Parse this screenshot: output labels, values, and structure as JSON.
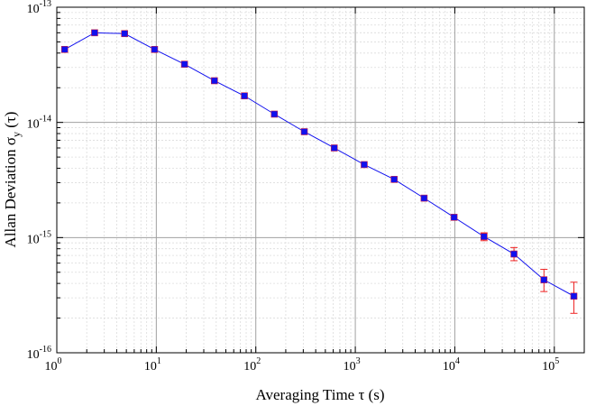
{
  "chart_data": {
    "type": "scatter",
    "title": "",
    "xlabel": "Averaging Time  τ (s)",
    "ylabel_main": "Allan Deviation  σ",
    "ylabel_sub": "y",
    "ylabel_tail": " (τ)",
    "xscale": "log",
    "yscale": "log",
    "xlim": [
      1,
      200000
    ],
    "ylim": [
      1e-16,
      1e-13
    ],
    "x_ticks": [
      {
        "base": "10",
        "exp": "0"
      },
      {
        "base": "10",
        "exp": "1"
      },
      {
        "base": "10",
        "exp": "2"
      },
      {
        "base": "10",
        "exp": "3"
      },
      {
        "base": "10",
        "exp": "4"
      },
      {
        "base": "10",
        "exp": "5"
      }
    ],
    "y_ticks": [
      {
        "base": "10",
        "exp": "-16"
      },
      {
        "base": "10",
        "exp": "-15"
      },
      {
        "base": "10",
        "exp": "-14"
      },
      {
        "base": "10",
        "exp": "-13"
      }
    ],
    "grid": true,
    "minor_grid": true,
    "series": [
      {
        "marker": "square",
        "line": true,
        "points": [
          {
            "x": 1.2,
            "y": 4.3e-14
          },
          {
            "x": 2.4,
            "y": 6e-14
          },
          {
            "x": 4.8,
            "y": 5.9e-14
          },
          {
            "x": 9.6,
            "y": 4.3e-14
          },
          {
            "x": 19.2,
            "y": 3.2e-14
          },
          {
            "x": 38.4,
            "y": 2.3e-14
          },
          {
            "x": 76.8,
            "y": 1.7e-14
          },
          {
            "x": 153.6,
            "y": 1.18e-14
          },
          {
            "x": 307.2,
            "y": 8.3e-15
          },
          {
            "x": 614.4,
            "y": 6e-15
          },
          {
            "x": 1228.8,
            "y": 4.3e-15
          },
          {
            "x": 2457.6,
            "y": 3.2e-15
          },
          {
            "x": 4915.2,
            "y": 2.2e-15
          },
          {
            "x": 9830.4,
            "y": 1.5e-15
          },
          {
            "x": 19660.8,
            "y": 1.02e-15,
            "err_lo": 9.4e-16,
            "err_hi": 1.1e-15
          },
          {
            "x": 39321.6,
            "y": 7.2e-16,
            "err_lo": 6.3e-16,
            "err_hi": 8.2e-16
          },
          {
            "x": 78643.2,
            "y": 4.3e-16,
            "err_lo": 3.4e-16,
            "err_hi": 5.3e-16
          },
          {
            "x": 157286.4,
            "y": 3.1e-16,
            "err_lo": 2.2e-16,
            "err_hi": 4.1e-16
          }
        ]
      }
    ],
    "colors": {
      "line": "#1010ee",
      "marker": "#1010ee",
      "marker_edge": "#cc2244",
      "errorbar": "#ee2222",
      "grid_major": "#a0a0a0",
      "grid_minor": "#dcdcdc"
    }
  }
}
